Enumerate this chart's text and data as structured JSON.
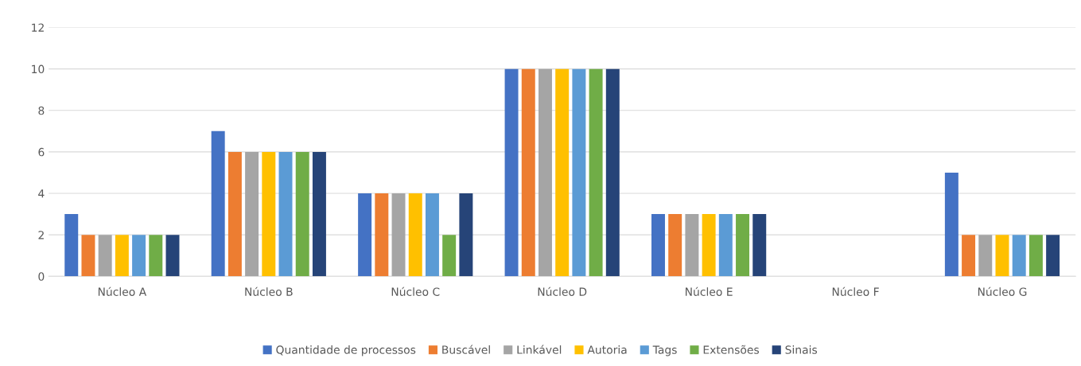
{
  "chart_data": {
    "type": "bar",
    "categories": [
      "Núcleo A",
      "Núcleo B",
      "Núcleo C",
      "Núcleo D",
      "Núcleo E",
      "Núcleo F",
      "Núcleo G"
    ],
    "series": [
      {
        "name": "Quantidade de processos",
        "color": "#4472c4",
        "values": [
          3,
          7,
          4,
          10,
          3,
          0,
          5
        ]
      },
      {
        "name": "Buscável",
        "color": "#ed7d31",
        "values": [
          2,
          6,
          4,
          10,
          3,
          0,
          2
        ]
      },
      {
        "name": "Linkável",
        "color": "#a5a5a5",
        "values": [
          2,
          6,
          4,
          10,
          3,
          0,
          2
        ]
      },
      {
        "name": "Autoria",
        "color": "#ffc000",
        "values": [
          2,
          6,
          4,
          10,
          3,
          0,
          2
        ]
      },
      {
        "name": "Tags",
        "color": "#5b9bd5",
        "values": [
          2,
          6,
          4,
          10,
          3,
          0,
          2
        ]
      },
      {
        "name": "Extensões",
        "color": "#70ad47",
        "values": [
          2,
          6,
          2,
          10,
          3,
          0,
          2
        ]
      },
      {
        "name": "Sinais",
        "color": "#264478",
        "values": [
          2,
          6,
          4,
          10,
          3,
          0,
          2
        ]
      }
    ],
    "ylim": [
      0,
      12
    ],
    "yticks": [
      0,
      2,
      4,
      6,
      8,
      10,
      12
    ],
    "grid": "y",
    "legend": "bottom"
  }
}
